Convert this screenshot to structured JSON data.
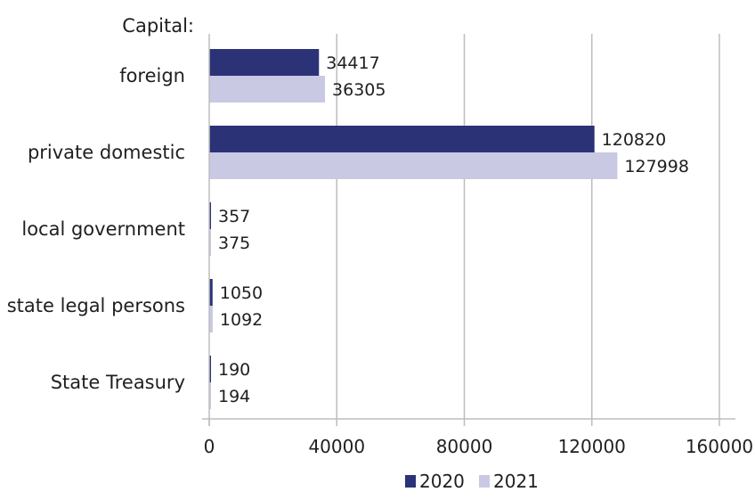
{
  "chart_data": {
    "type": "bar",
    "orientation": "horizontal",
    "title": "",
    "group_label": "Capital:",
    "categories": [
      "foreign",
      "private domestic",
      "local government",
      "state legal persons",
      "State Treasury"
    ],
    "series": [
      {
        "name": "2020",
        "color": "#2b3276",
        "values": [
          34417,
          120820,
          357,
          1050,
          190
        ]
      },
      {
        "name": "2021",
        "color": "#c9c9e3",
        "values": [
          36305,
          127998,
          375,
          1092,
          194
        ]
      }
    ],
    "xlim": [
      0,
      160000
    ],
    "xticks": [
      0,
      40000,
      80000,
      120000,
      160000
    ],
    "tick_labels": [
      "0",
      "40000",
      "80000",
      "120000",
      "160000"
    ],
    "grid": true,
    "legend_position": "bottom-center"
  }
}
